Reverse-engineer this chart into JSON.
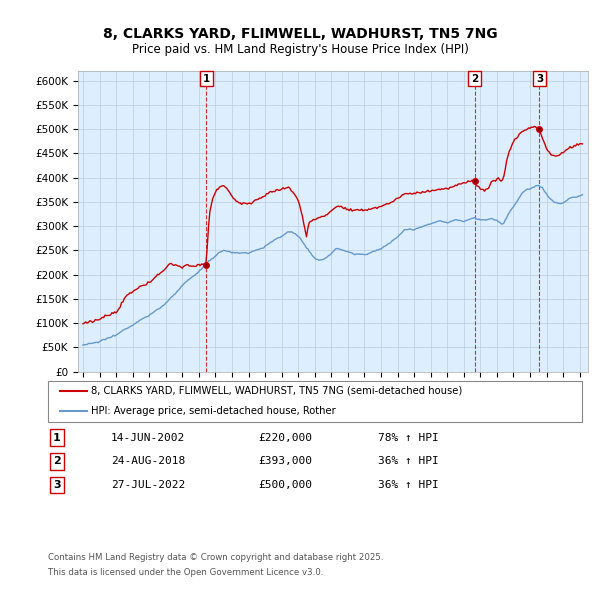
{
  "title": "8, CLARKS YARD, FLIMWELL, WADHURST, TN5 7NG",
  "subtitle": "Price paid vs. HM Land Registry's House Price Index (HPI)",
  "ylim": [
    0,
    620000
  ],
  "yticks": [
    0,
    50000,
    100000,
    150000,
    200000,
    250000,
    300000,
    350000,
    400000,
    450000,
    500000,
    550000,
    600000
  ],
  "ytick_labels": [
    "£0",
    "£50K",
    "£100K",
    "£150K",
    "£200K",
    "£250K",
    "£300K",
    "£350K",
    "£400K",
    "£450K",
    "£500K",
    "£550K",
    "£600K"
  ],
  "legend_line1": "8, CLARKS YARD, FLIMWELL, WADHURST, TN5 7NG (semi-detached house)",
  "legend_line2": "HPI: Average price, semi-detached house, Rother",
  "sales": [
    {
      "num": 1,
      "date": "14-JUN-2002",
      "price": 220000,
      "year": 2002.45,
      "hpi_pct": "78% ↑ HPI"
    },
    {
      "num": 2,
      "date": "24-AUG-2018",
      "price": 393000,
      "year": 2018.65,
      "hpi_pct": "36% ↑ HPI"
    },
    {
      "num": 3,
      "date": "27-JUL-2022",
      "price": 500000,
      "year": 2022.57,
      "hpi_pct": "36% ↑ HPI"
    }
  ],
  "footnote1": "Contains HM Land Registry data © Crown copyright and database right 2025.",
  "footnote2": "This data is licensed under the Open Government Licence v3.0.",
  "red_color": "#cc0000",
  "blue_color": "#6699cc",
  "plot_bg_color": "#ddeeff",
  "background_color": "#ffffff",
  "grid_color": "#bbccdd"
}
